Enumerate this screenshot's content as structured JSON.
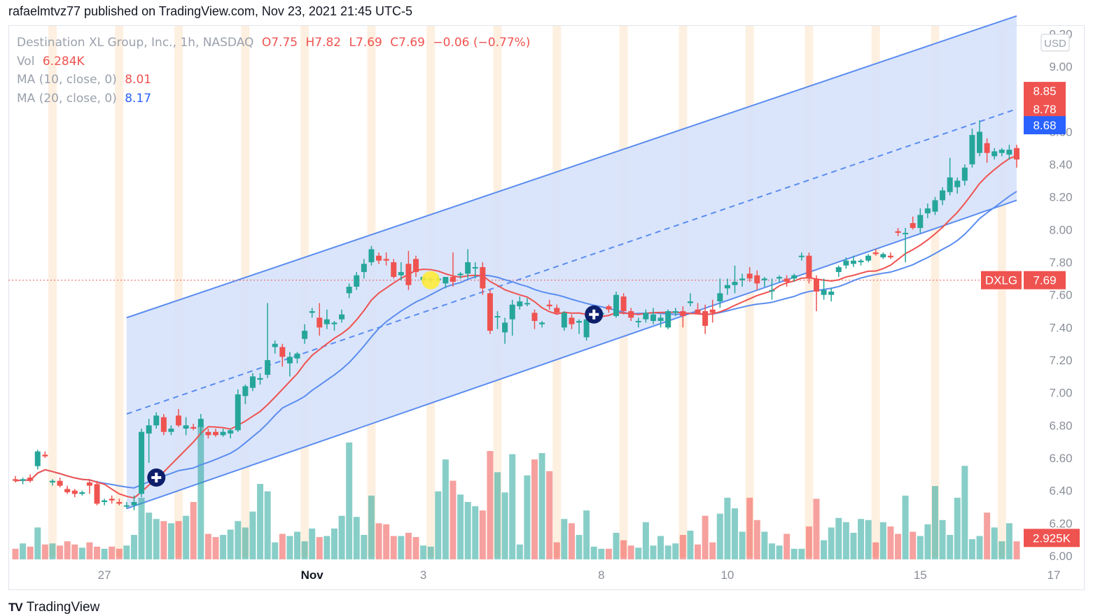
{
  "header": {
    "published_line": "rafaelmtvz77 published on TradingView.com, Nov 23, 2021 21:45 UTC-5"
  },
  "legend": {
    "symbol": "Destination XL Group, Inc., 1h, NASDAQ",
    "open": "O7.75",
    "high": "H7.82",
    "low": "L7.69",
    "close": "C7.69",
    "change": "−0.06 (−0.77%)",
    "vol_label": "Vol",
    "vol_value": "6.284K",
    "ma10_label": "MA (10, close, 0)",
    "ma10_value": "8.01",
    "ma20_label": "MA (20, close, 0)",
    "ma20_value": "8.17"
  },
  "footer": {
    "brand": "TradingView",
    "logo": "TV"
  },
  "colors": {
    "up": "#26a69a",
    "down": "#ef5350",
    "ma10": "#ef5350",
    "ma20": "#5b8def",
    "channel_fill": "#d4e0fc",
    "channel_line": "#5b8def",
    "session_stripe": "#fde9d4"
  },
  "chart_data": {
    "type": "candlestick",
    "symbol": "DXLG",
    "currency": "USD",
    "timeframe": "1h",
    "x_tick_labels": [
      {
        "i": 12,
        "label": "27"
      },
      {
        "i": 40,
        "label": "Nov"
      },
      {
        "i": 55,
        "label": "3"
      },
      {
        "i": 79,
        "label": "8"
      },
      {
        "i": 96,
        "label": "10"
      },
      {
        "i": 122,
        "label": "15"
      },
      {
        "i": 140,
        "label": "17"
      }
    ],
    "y_axis": {
      "min": 6.0,
      "max": 9.2,
      "ticks": [
        6.0,
        6.2,
        6.4,
        6.6,
        6.8,
        7.0,
        7.2,
        7.4,
        7.6,
        7.8,
        8.0,
        8.2,
        8.4,
        8.6,
        9.0,
        9.2
      ]
    },
    "badges": [
      {
        "label": "8.85",
        "value": 8.85,
        "color": "#ef5350"
      },
      {
        "label": "8.78",
        "value": 8.74,
        "color": "#ef5350"
      },
      {
        "label": "8.68",
        "value": 8.64,
        "color": "#2962ff"
      },
      {
        "label": "DXLG",
        "value": 7.69,
        "color": "#ef5350",
        "pair": "7.69"
      },
      {
        "label": "2.925K",
        "value": 6.11,
        "color": "#ef5350"
      }
    ],
    "last_price": 7.69,
    "candles": [
      [
        6.47,
        6.49,
        6.45,
        6.46,
        1.0
      ],
      [
        6.46,
        6.48,
        6.44,
        6.47,
        1.5
      ],
      [
        6.48,
        6.5,
        6.45,
        6.46,
        1.2
      ],
      [
        6.55,
        6.65,
        6.53,
        6.64,
        3.0
      ],
      [
        6.62,
        6.64,
        6.6,
        6.61,
        1.4
      ],
      [
        6.45,
        6.47,
        6.43,
        6.46,
        1.5
      ],
      [
        6.46,
        6.48,
        6.42,
        6.43,
        1.3
      ],
      [
        6.41,
        6.43,
        6.38,
        6.39,
        1.7
      ],
      [
        6.4,
        6.41,
        6.36,
        6.38,
        1.4
      ],
      [
        6.38,
        6.4,
        6.37,
        6.39,
        1.1
      ],
      [
        6.45,
        6.47,
        6.38,
        6.43,
        1.6
      ],
      [
        6.44,
        6.46,
        6.31,
        6.32,
        1.2
      ],
      [
        6.33,
        6.35,
        6.31,
        6.34,
        1.0
      ],
      [
        6.35,
        6.37,
        6.32,
        6.34,
        1.2
      ],
      [
        6.33,
        6.35,
        6.31,
        6.32,
        1.0
      ],
      [
        6.31,
        6.33,
        6.29,
        6.31,
        1.3
      ],
      [
        6.31,
        6.37,
        6.28,
        6.33,
        2.3
      ],
      [
        6.38,
        6.78,
        6.36,
        6.76,
        5.8
      ],
      [
        6.75,
        6.84,
        6.57,
        6.8,
        4.4
      ],
      [
        6.8,
        6.88,
        6.78,
        6.86,
        3.8
      ],
      [
        6.85,
        6.87,
        6.74,
        6.76,
        3.6
      ],
      [
        6.76,
        6.8,
        6.74,
        6.78,
        3.4
      ],
      [
        6.86,
        6.9,
        6.79,
        6.8,
        3.6
      ],
      [
        6.78,
        6.85,
        6.74,
        6.8,
        4.1
      ],
      [
        6.79,
        6.81,
        6.77,
        6.78,
        5.4
      ],
      [
        6.79,
        6.87,
        6.74,
        6.84,
        12.6
      ],
      [
        6.76,
        6.78,
        6.72,
        6.74,
        2.4
      ],
      [
        6.76,
        6.78,
        6.73,
        6.74,
        2.1
      ],
      [
        6.74,
        6.78,
        6.73,
        6.76,
        2.3
      ],
      [
        6.75,
        6.78,
        6.72,
        6.77,
        2.8
      ],
      [
        6.77,
        7.02,
        6.76,
        6.99,
        3.6
      ],
      [
        6.98,
        7.05,
        6.93,
        7.04,
        3.0
      ],
      [
        7.03,
        7.12,
        7.01,
        7.1,
        4.5
      ],
      [
        7.08,
        7.12,
        7.05,
        7.09,
        7.1
      ],
      [
        7.11,
        7.55,
        7.09,
        7.2,
        6.4
      ],
      [
        7.28,
        7.32,
        7.24,
        7.3,
        1.6
      ],
      [
        7.28,
        7.3,
        7.16,
        7.22,
        2.4
      ],
      [
        7.18,
        7.25,
        7.1,
        7.22,
        2.2
      ],
      [
        7.21,
        7.25,
        7.18,
        7.24,
        2.6
      ],
      [
        7.33,
        7.42,
        7.3,
        7.38,
        1.7
      ],
      [
        7.49,
        7.52,
        7.46,
        7.5,
        2.9
      ],
      [
        7.46,
        7.55,
        7.35,
        7.4,
        2.1
      ],
      [
        7.42,
        7.51,
        7.39,
        7.45,
        2.2
      ],
      [
        7.42,
        7.44,
        7.38,
        7.43,
        2.9
      ],
      [
        7.45,
        7.51,
        7.43,
        7.48,
        4.1
      ],
      [
        7.61,
        7.67,
        7.58,
        7.65,
        11.0
      ],
      [
        7.65,
        7.74,
        7.63,
        7.72,
        4.0
      ],
      [
        7.74,
        7.82,
        7.7,
        7.79,
        2.3
      ],
      [
        7.8,
        7.9,
        7.78,
        7.88,
        6.0
      ],
      [
        7.84,
        7.86,
        7.79,
        7.81,
        3.4
      ],
      [
        7.82,
        7.86,
        7.78,
        7.81,
        3.3
      ],
      [
        7.8,
        7.82,
        7.7,
        7.71,
        2.2
      ],
      [
        7.72,
        7.8,
        7.69,
        7.74,
        2.2
      ],
      [
        7.79,
        7.87,
        7.63,
        7.66,
        2.5
      ],
      [
        7.82,
        7.84,
        7.71,
        7.74,
        2.1
      ],
      [
        7.69,
        7.71,
        7.67,
        7.71,
        1.3
      ],
      [
        7.69,
        7.71,
        7.67,
        7.7,
        1.2
      ],
      [
        7.7,
        7.72,
        7.68,
        7.7,
        6.4
      ],
      [
        7.67,
        7.71,
        7.64,
        7.71,
        9.4
      ],
      [
        7.71,
        7.86,
        7.65,
        7.68,
        7.4
      ],
      [
        7.72,
        7.74,
        7.7,
        7.73,
        6.1
      ],
      [
        7.73,
        7.88,
        7.7,
        7.8,
        5.4
      ],
      [
        7.77,
        7.8,
        7.7,
        7.77,
        5.0
      ],
      [
        7.77,
        7.8,
        7.6,
        7.64,
        4.6
      ],
      [
        7.61,
        7.63,
        7.36,
        7.38,
        10.2
      ],
      [
        7.47,
        7.5,
        7.39,
        7.47,
        8.2
      ],
      [
        7.37,
        7.46,
        7.3,
        7.43,
        6.3
      ],
      [
        7.45,
        7.57,
        7.35,
        7.54,
        9.9
      ],
      [
        7.53,
        7.59,
        7.51,
        7.56,
        1.4
      ],
      [
        7.55,
        7.58,
        7.53,
        7.55,
        7.9
      ],
      [
        7.49,
        7.51,
        7.39,
        7.44,
        9.4
      ],
      [
        7.42,
        7.44,
        7.4,
        7.43,
        10.0
      ],
      [
        7.54,
        7.57,
        7.51,
        7.53,
        8.3
      ],
      [
        7.52,
        7.54,
        7.48,
        7.49,
        1.6
      ],
      [
        7.4,
        7.5,
        7.38,
        7.49,
        3.8
      ],
      [
        7.46,
        7.48,
        7.39,
        7.42,
        3.4
      ],
      [
        7.43,
        7.45,
        7.36,
        7.44,
        2.3
      ],
      [
        7.34,
        7.47,
        7.32,
        7.45,
        4.6
      ],
      [
        7.48,
        7.5,
        7.46,
        7.49,
        1.2
      ],
      [
        7.48,
        7.5,
        7.46,
        7.49,
        1.0
      ],
      [
        7.53,
        7.54,
        7.49,
        7.51,
        1.0
      ],
      [
        7.47,
        7.62,
        7.46,
        7.6,
        2.5
      ],
      [
        7.59,
        7.61,
        7.48,
        7.5,
        1.8
      ],
      [
        7.5,
        7.52,
        7.44,
        7.46,
        1.3
      ],
      [
        7.44,
        7.46,
        7.4,
        7.44,
        1.1
      ],
      [
        7.45,
        7.51,
        7.43,
        7.49,
        3.5
      ],
      [
        7.44,
        7.52,
        7.42,
        7.48,
        1.3
      ],
      [
        7.44,
        7.48,
        7.4,
        7.46,
        2.2
      ],
      [
        7.4,
        7.51,
        7.39,
        7.5,
        1.3
      ],
      [
        7.49,
        7.52,
        7.47,
        7.5,
        1.5
      ],
      [
        7.5,
        7.53,
        7.4,
        7.47,
        2.3
      ],
      [
        7.55,
        7.61,
        7.53,
        7.56,
        2.7
      ],
      [
        7.51,
        7.55,
        7.49,
        7.48,
        1.4
      ],
      [
        7.5,
        7.54,
        7.36,
        7.41,
        4.1
      ],
      [
        7.51,
        7.57,
        7.43,
        7.49,
        1.6
      ],
      [
        7.56,
        7.7,
        7.52,
        7.61,
        4.3
      ],
      [
        7.64,
        7.7,
        7.6,
        7.66,
        5.8
      ],
      [
        7.66,
        7.78,
        7.61,
        7.68,
        4.8
      ],
      [
        7.69,
        7.73,
        7.65,
        7.7,
        2.6
      ],
      [
        7.73,
        7.77,
        7.68,
        7.7,
        5.8
      ],
      [
        7.72,
        7.75,
        7.63,
        7.67,
        3.7
      ],
      [
        7.69,
        7.71,
        7.65,
        7.7,
        2.6
      ],
      [
        7.63,
        7.7,
        7.57,
        7.63,
        1.5
      ],
      [
        7.7,
        7.72,
        7.68,
        7.71,
        1.3
      ],
      [
        7.7,
        7.72,
        7.65,
        7.68,
        2.4
      ],
      [
        7.7,
        7.73,
        7.68,
        7.72,
        1.0
      ],
      [
        7.84,
        7.86,
        7.81,
        7.84,
        1.0
      ],
      [
        7.84,
        7.86,
        7.67,
        7.7,
        3.1
      ],
      [
        7.7,
        7.72,
        7.5,
        7.62,
        5.7
      ],
      [
        7.6,
        7.7,
        7.57,
        7.63,
        1.8
      ],
      [
        7.6,
        7.64,
        7.56,
        7.62,
        3.0
      ],
      [
        7.74,
        7.78,
        7.71,
        7.77,
        3.9
      ],
      [
        7.78,
        7.83,
        7.76,
        7.81,
        3.5
      ],
      [
        7.79,
        7.84,
        7.77,
        7.81,
        2.5
      ],
      [
        7.8,
        7.82,
        7.78,
        7.81,
        3.8
      ],
      [
        7.81,
        7.85,
        7.8,
        7.84,
        3.7
      ],
      [
        7.86,
        7.88,
        7.84,
        7.85,
        1.6
      ],
      [
        7.83,
        7.86,
        7.82,
        7.85,
        3.5
      ],
      [
        7.84,
        7.86,
        7.82,
        7.83,
        3.1
      ],
      [
        7.99,
        8.01,
        7.96,
        7.98,
        2.4
      ],
      [
        7.98,
        8.01,
        7.8,
        7.98,
        6.0
      ],
      [
        8.04,
        8.08,
        8.0,
        8.01,
        2.6
      ],
      [
        8.01,
        8.13,
        7.98,
        8.09,
        2.2
      ],
      [
        8.1,
        8.16,
        8.07,
        8.13,
        3.3
      ],
      [
        8.11,
        8.2,
        8.09,
        8.18,
        6.9
      ],
      [
        8.18,
        8.26,
        8.15,
        8.24,
        3.7
      ],
      [
        8.23,
        8.44,
        8.21,
        8.32,
        2.3
      ],
      [
        8.26,
        8.32,
        8.22,
        8.3,
        5.8
      ],
      [
        8.3,
        8.4,
        8.27,
        8.38,
        8.8
      ],
      [
        8.4,
        8.62,
        8.38,
        8.58,
        1.9
      ],
      [
        8.47,
        8.67,
        8.45,
        8.6,
        2.2
      ],
      [
        8.53,
        8.56,
        8.41,
        8.47,
        4.4
      ],
      [
        8.45,
        8.5,
        8.43,
        8.48,
        3.0
      ],
      [
        8.47,
        8.5,
        8.45,
        8.49,
        1.7
      ],
      [
        8.46,
        8.52,
        8.43,
        8.49,
        3.4
      ],
      [
        8.5,
        8.52,
        8.38,
        8.43,
        1.7
      ]
    ]
  }
}
